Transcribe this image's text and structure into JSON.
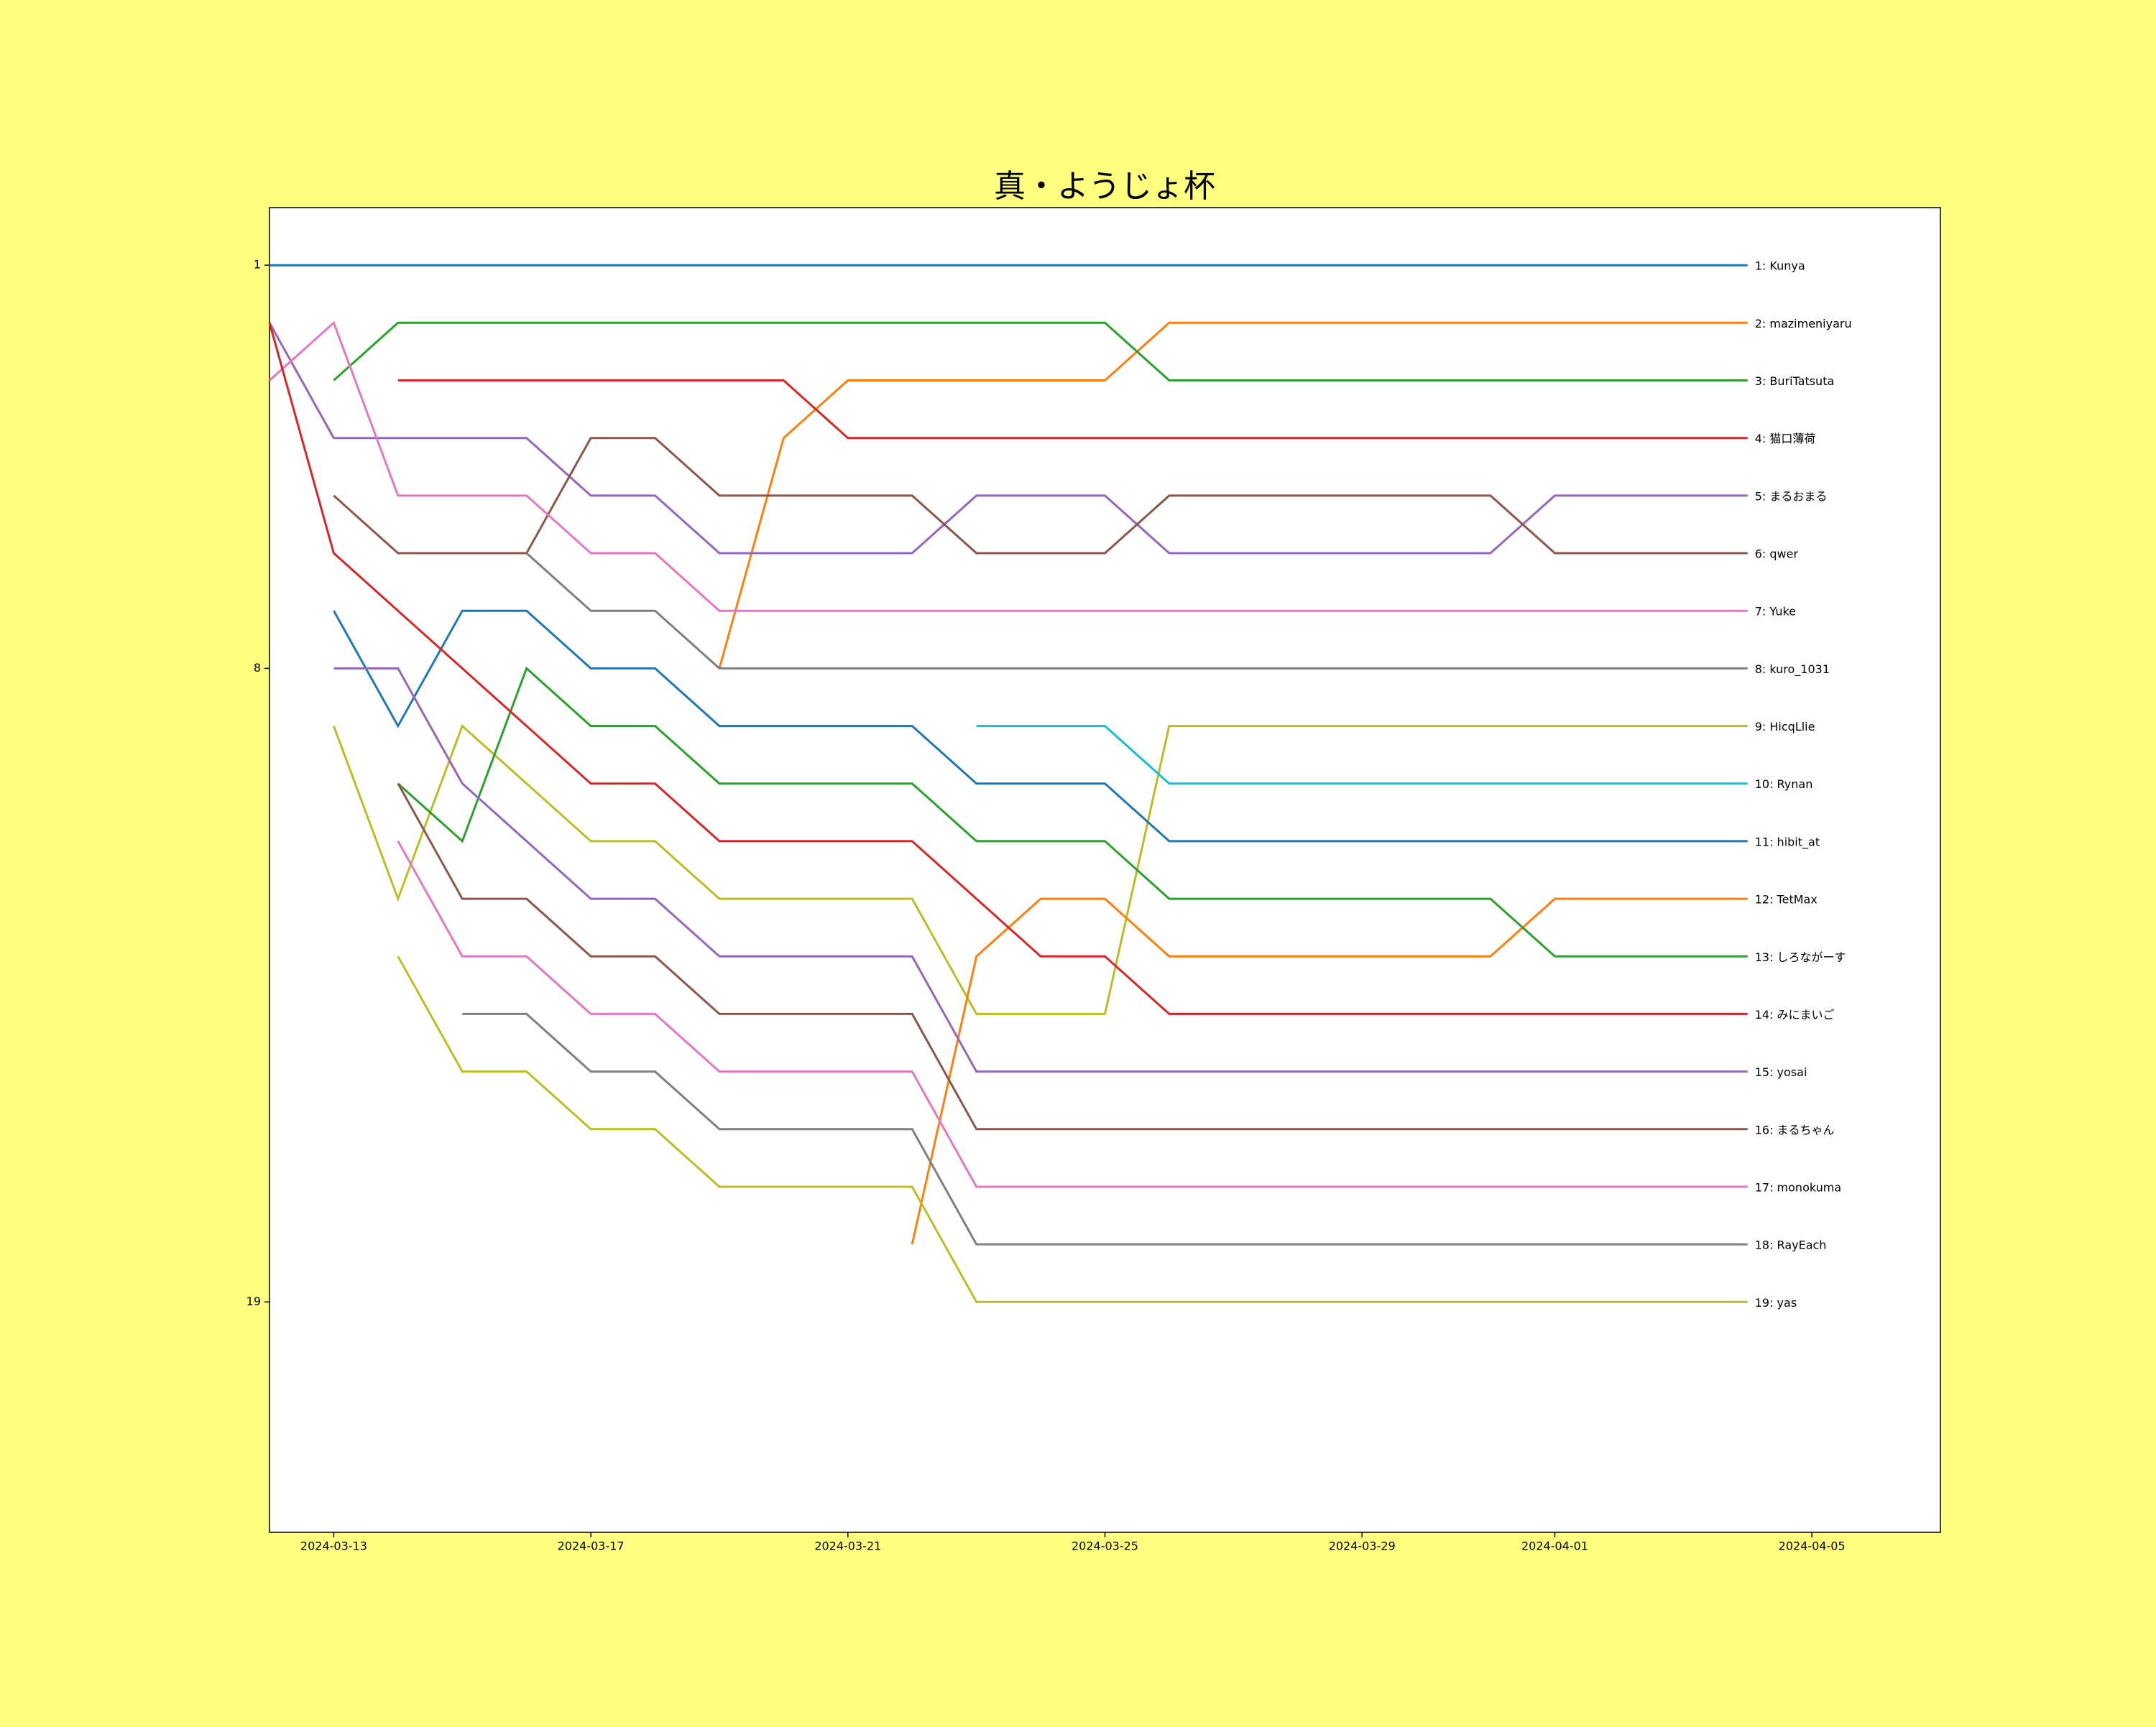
{
  "chart_data": {
    "type": "line",
    "title": "真・ようじょ杯",
    "x": [
      "2024-03-12",
      "2024-03-13",
      "2024-03-14",
      "2024-03-15",
      "2024-03-16",
      "2024-03-17",
      "2024-03-18",
      "2024-03-19",
      "2024-03-20",
      "2024-03-21",
      "2024-03-22",
      "2024-03-23",
      "2024-03-24",
      "2024-03-25",
      "2024-03-26",
      "2024-03-27",
      "2024-03-28",
      "2024-03-29",
      "2024-03-30",
      "2024-03-31",
      "2024-04-01",
      "2024-04-02",
      "2024-04-03",
      "2024-04-04"
    ],
    "xlim": [
      "2024-03-12",
      "2024-04-07"
    ],
    "xticks": [
      "2024-03-13",
      "2024-03-17",
      "2024-03-21",
      "2024-03-25",
      "2024-03-29",
      "2024-04-01",
      "2024-04-05"
    ],
    "ylim": [
      23,
      0
    ],
    "yticks": [
      1,
      8,
      19
    ],
    "grid": false,
    "series": [
      {
        "name": "1: Kunya",
        "color": "#1f77b4",
        "values": [
          1,
          1,
          1,
          1,
          1,
          1,
          1,
          1,
          1,
          1,
          1,
          1,
          1,
          1,
          1,
          1,
          1,
          1,
          1,
          1,
          1,
          1,
          1,
          1
        ]
      },
      {
        "name": "2: mazimeniyaru",
        "color": "#ff7f0e",
        "values": [
          null,
          null,
          null,
          null,
          null,
          null,
          null,
          8,
          4,
          3,
          3,
          3,
          3,
          3,
          2,
          2,
          2,
          2,
          2,
          2,
          2,
          2,
          2,
          2
        ]
      },
      {
        "name": "3: BuriTatsuta",
        "color": "#2ca02c",
        "values": [
          null,
          3,
          2,
          2,
          2,
          2,
          2,
          2,
          2,
          2,
          2,
          2,
          2,
          2,
          3,
          3,
          3,
          3,
          3,
          3,
          3,
          3,
          3,
          3
        ]
      },
      {
        "name": "4: 猫口薄荷",
        "color": "#d62728",
        "values": [
          null,
          null,
          3,
          3,
          3,
          3,
          3,
          3,
          3,
          4,
          4,
          4,
          4,
          4,
          4,
          4,
          4,
          4,
          4,
          4,
          4,
          4,
          4,
          4
        ]
      },
      {
        "name": "5: まるおまる",
        "color": "#9467bd",
        "values": [
          2,
          4,
          4,
          4,
          4,
          5,
          5,
          6,
          6,
          6,
          6,
          5,
          5,
          5,
          6,
          6,
          6,
          6,
          6,
          6,
          5,
          5,
          5,
          5
        ]
      },
      {
        "name": "6: qwer",
        "color": "#8c564b",
        "values": [
          null,
          5,
          6,
          6,
          6,
          4,
          4,
          5,
          5,
          5,
          5,
          6,
          6,
          6,
          5,
          5,
          5,
          5,
          5,
          5,
          6,
          6,
          6,
          6
        ]
      },
      {
        "name": "7: Yuke",
        "color": "#e377c2",
        "values": [
          3,
          2,
          5,
          5,
          5,
          6,
          6,
          7,
          7,
          7,
          7,
          7,
          7,
          7,
          7,
          7,
          7,
          7,
          7,
          7,
          7,
          7,
          7,
          7
        ]
      },
      {
        "name": "8: kuro_1031",
        "color": "#7f7f7f",
        "values": [
          null,
          null,
          null,
          null,
          6,
          7,
          7,
          8,
          8,
          8,
          8,
          8,
          8,
          8,
          8,
          8,
          8,
          8,
          8,
          8,
          8,
          8,
          8,
          8
        ]
      },
      {
        "name": "9: HicqLlie",
        "color": "#bcbd22",
        "values": [
          null,
          9,
          12,
          9,
          10,
          11,
          11,
          12,
          12,
          12,
          12,
          14,
          14,
          14,
          9,
          9,
          9,
          9,
          9,
          9,
          9,
          9,
          9,
          9
        ]
      },
      {
        "name": "10: Rynan",
        "color": "#17becf",
        "values": [
          null,
          null,
          null,
          null,
          null,
          null,
          null,
          null,
          null,
          null,
          null,
          9,
          9,
          9,
          10,
          10,
          10,
          10,
          10,
          10,
          10,
          10,
          10,
          10
        ]
      },
      {
        "name": "11: hibit_at",
        "color": "#1f77b4",
        "values": [
          null,
          7,
          9,
          7,
          7,
          8,
          8,
          9,
          9,
          9,
          9,
          10,
          10,
          10,
          11,
          11,
          11,
          11,
          11,
          11,
          11,
          11,
          11,
          11
        ]
      },
      {
        "name": "12: TetMax",
        "color": "#ff7f0e",
        "values": [
          null,
          null,
          null,
          null,
          null,
          null,
          null,
          null,
          null,
          null,
          18,
          13,
          12,
          12,
          13,
          13,
          13,
          13,
          13,
          13,
          12,
          12,
          12,
          12
        ]
      },
      {
        "name": "13: しろながーす",
        "color": "#2ca02c",
        "values": [
          null,
          null,
          10,
          11,
          8,
          9,
          9,
          10,
          10,
          10,
          10,
          11,
          11,
          11,
          12,
          12,
          12,
          12,
          12,
          12,
          13,
          13,
          13,
          13
        ]
      },
      {
        "name": "14: みにまいご",
        "color": "#d62728",
        "values": [
          2,
          6,
          7,
          8,
          9,
          10,
          10,
          11,
          11,
          11,
          11,
          12,
          13,
          13,
          14,
          14,
          14,
          14,
          14,
          14,
          14,
          14,
          14,
          14
        ]
      },
      {
        "name": "15: yosai",
        "color": "#9467bd",
        "values": [
          null,
          8,
          8,
          10,
          11,
          12,
          12,
          13,
          13,
          13,
          13,
          15,
          15,
          15,
          15,
          15,
          15,
          15,
          15,
          15,
          15,
          15,
          15,
          15
        ]
      },
      {
        "name": "16: まるちゃん",
        "color": "#8c564b",
        "values": [
          null,
          null,
          10,
          12,
          12,
          13,
          13,
          14,
          14,
          14,
          14,
          16,
          16,
          16,
          16,
          16,
          16,
          16,
          16,
          16,
          16,
          16,
          16,
          16
        ]
      },
      {
        "name": "17: monokuma",
        "color": "#e377c2",
        "values": [
          null,
          null,
          11,
          13,
          13,
          14,
          14,
          15,
          15,
          15,
          15,
          17,
          17,
          17,
          17,
          17,
          17,
          17,
          17,
          17,
          17,
          17,
          17,
          17
        ]
      },
      {
        "name": "18: RayEach",
        "color": "#7f7f7f",
        "values": [
          null,
          null,
          null,
          14,
          14,
          15,
          15,
          16,
          16,
          16,
          16,
          18,
          18,
          18,
          18,
          18,
          18,
          18,
          18,
          18,
          18,
          18,
          18,
          18
        ]
      },
      {
        "name": "19: yas",
        "color": "#bcbd22",
        "values": [
          null,
          null,
          13,
          15,
          15,
          16,
          16,
          17,
          17,
          17,
          17,
          19,
          19,
          19,
          19,
          19,
          19,
          19,
          19,
          19,
          19,
          19,
          19,
          19
        ]
      }
    ]
  }
}
